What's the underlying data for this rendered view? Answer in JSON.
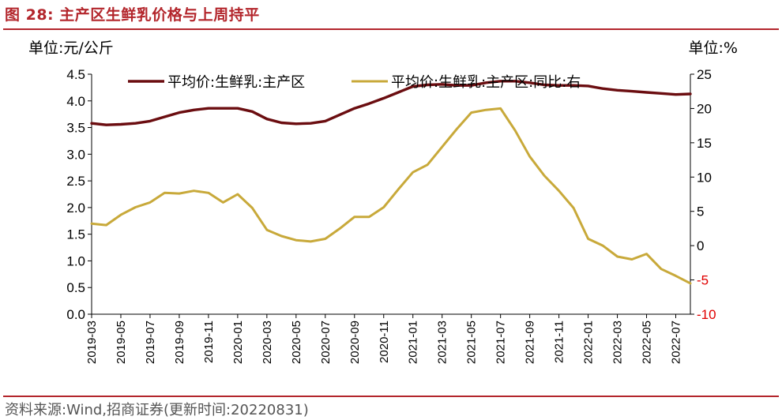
{
  "header": {
    "title": "图 28:  主产区生鲜乳价格与上周持平"
  },
  "units": {
    "left": "单位:元/公斤",
    "right": "单位:%"
  },
  "footer": {
    "source": "资料来源:Wind,招商证券(更新时间:20220831)"
  },
  "colors": {
    "brand": "#b3262c",
    "price_line": "#6b0d10",
    "yoy_line": "#c8a93a",
    "negative_tick": "#e00000"
  },
  "chart_data": {
    "type": "line",
    "x_ticks": [
      "2019-03",
      "2019-05",
      "2019-07",
      "2019-09",
      "2019-11",
      "2020-01",
      "2020-03",
      "2020-05",
      "2020-07",
      "2020-09",
      "2020-11",
      "2021-01",
      "2021-03",
      "2021-05",
      "2021-07",
      "2021-09",
      "2021-11",
      "2022-01",
      "2022-03",
      "2022-05",
      "2022-07"
    ],
    "x_range": [
      "2019-03",
      "2022-08"
    ],
    "y_left": {
      "ticks": [
        "4.5",
        "4.0",
        "3.5",
        "3.0",
        "2.5",
        "2.0",
        "1.5",
        "1.0",
        "0.5",
        "0.0"
      ],
      "range": [
        0,
        4.5
      ]
    },
    "y_right": {
      "ticks": [
        "25",
        "20",
        "15",
        "10",
        "5",
        "0",
        "-5",
        "-10"
      ],
      "range": [
        -10,
        25
      ]
    },
    "legend_position": "top",
    "series": [
      {
        "name": "平均价:生鲜乳:主产区",
        "axis": "left",
        "points": [
          [
            "2019-03",
            3.58
          ],
          [
            "2019-04",
            3.55
          ],
          [
            "2019-05",
            3.56
          ],
          [
            "2019-06",
            3.58
          ],
          [
            "2019-07",
            3.62
          ],
          [
            "2019-08",
            3.7
          ],
          [
            "2019-09",
            3.78
          ],
          [
            "2019-10",
            3.83
          ],
          [
            "2019-11",
            3.86
          ],
          [
            "2019-12",
            3.86
          ],
          [
            "2020-01",
            3.86
          ],
          [
            "2020-02",
            3.8
          ],
          [
            "2020-03",
            3.66
          ],
          [
            "2020-04",
            3.59
          ],
          [
            "2020-05",
            3.57
          ],
          [
            "2020-06",
            3.58
          ],
          [
            "2020-07",
            3.62
          ],
          [
            "2020-08",
            3.74
          ],
          [
            "2020-09",
            3.86
          ],
          [
            "2020-10",
            3.95
          ],
          [
            "2020-11",
            4.05
          ],
          [
            "2020-12",
            4.16
          ],
          [
            "2021-01",
            4.27
          ],
          [
            "2021-02",
            4.3
          ],
          [
            "2021-03",
            4.31
          ],
          [
            "2021-04",
            4.29
          ],
          [
            "2021-05",
            4.29
          ],
          [
            "2021-06",
            4.34
          ],
          [
            "2021-07",
            4.37
          ],
          [
            "2021-08",
            4.37
          ],
          [
            "2021-09",
            4.34
          ],
          [
            "2021-10",
            4.3
          ],
          [
            "2021-11",
            4.29
          ],
          [
            "2021-12",
            4.29
          ],
          [
            "2022-01",
            4.28
          ],
          [
            "2022-02",
            4.23
          ],
          [
            "2022-03",
            4.2
          ],
          [
            "2022-04",
            4.18
          ],
          [
            "2022-05",
            4.16
          ],
          [
            "2022-06",
            4.14
          ],
          [
            "2022-07",
            4.12
          ],
          [
            "2022-08",
            4.13
          ]
        ]
      },
      {
        "name": "平均价:生鲜乳:主产区:同比:右",
        "axis": "right",
        "points": [
          [
            "2019-03",
            3.2
          ],
          [
            "2019-04",
            3.0
          ],
          [
            "2019-05",
            4.5
          ],
          [
            "2019-06",
            5.6
          ],
          [
            "2019-07",
            6.3
          ],
          [
            "2019-08",
            7.7
          ],
          [
            "2019-09",
            7.6
          ],
          [
            "2019-10",
            8.0
          ],
          [
            "2019-11",
            7.7
          ],
          [
            "2019-12",
            6.3
          ],
          [
            "2020-01",
            7.5
          ],
          [
            "2020-02",
            5.5
          ],
          [
            "2020-03",
            2.3
          ],
          [
            "2020-04",
            1.4
          ],
          [
            "2020-05",
            0.8
          ],
          [
            "2020-06",
            0.6
          ],
          [
            "2020-07",
            1.0
          ],
          [
            "2020-08",
            2.5
          ],
          [
            "2020-09",
            4.2
          ],
          [
            "2020-10",
            4.2
          ],
          [
            "2020-11",
            5.6
          ],
          [
            "2020-12",
            8.2
          ],
          [
            "2021-01",
            10.7
          ],
          [
            "2021-02",
            11.8
          ],
          [
            "2021-03",
            14.4
          ],
          [
            "2021-04",
            17.0
          ],
          [
            "2021-05",
            19.4
          ],
          [
            "2021-06",
            19.8
          ],
          [
            "2021-07",
            20.0
          ],
          [
            "2021-08",
            16.8
          ],
          [
            "2021-09",
            13.0
          ],
          [
            "2021-10",
            10.2
          ],
          [
            "2021-11",
            8.0
          ],
          [
            "2021-12",
            5.5
          ],
          [
            "2022-01",
            1.0
          ],
          [
            "2022-02",
            0.0
          ],
          [
            "2022-03",
            -1.6
          ],
          [
            "2022-04",
            -2.0
          ],
          [
            "2022-05",
            -1.2
          ],
          [
            "2022-06",
            -3.4
          ],
          [
            "2022-07",
            -4.4
          ],
          [
            "2022-08",
            -5.5
          ]
        ]
      }
    ]
  }
}
